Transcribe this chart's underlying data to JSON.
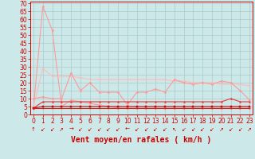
{
  "title": "",
  "xlabel": "Vent moyen/en rafales ( km/h )",
  "ylabel": "",
  "background_color": "#cce8e8",
  "grid_color": "#aacccc",
  "x_ticks": [
    0,
    1,
    2,
    3,
    4,
    5,
    6,
    7,
    8,
    9,
    10,
    11,
    12,
    13,
    14,
    15,
    16,
    17,
    18,
    19,
    20,
    21,
    22,
    23
  ],
  "y_ticks": [
    0,
    5,
    10,
    15,
    20,
    25,
    30,
    35,
    40,
    45,
    50,
    55,
    60,
    65,
    70
  ],
  "ylim": [
    0,
    71
  ],
  "xlim": [
    -0.3,
    23.3
  ],
  "series": [
    {
      "x": [
        0,
        1,
        2,
        3,
        4,
        5,
        6,
        7,
        8,
        9,
        10,
        11,
        12,
        13,
        14,
        15,
        16,
        17,
        18,
        19,
        20,
        21,
        22,
        23
      ],
      "y": [
        4,
        68,
        53,
        5,
        9,
        8,
        7,
        6,
        5,
        4,
        4,
        4,
        4,
        4,
        4,
        4,
        4,
        4,
        4,
        4,
        4,
        4,
        4,
        4
      ],
      "color": "#ff9999",
      "linewidth": 0.8,
      "marker": "o",
      "markersize": 1.5
    },
    {
      "x": [
        0,
        1,
        2,
        3,
        4,
        5,
        6,
        7,
        8,
        9,
        10,
        11,
        12,
        13,
        14,
        15,
        16,
        17,
        18,
        19,
        20,
        21,
        22,
        23
      ],
      "y": [
        5,
        29,
        24,
        24,
        24,
        23,
        22,
        22,
        22,
        22,
        22,
        22,
        22,
        22,
        22,
        21,
        21,
        20,
        20,
        20,
        19,
        19,
        19,
        18
      ],
      "color": "#ffbbbb",
      "linewidth": 0.8,
      "marker": "v",
      "markersize": 1.5
    },
    {
      "x": [
        0,
        1,
        2,
        3,
        4,
        5,
        6,
        7,
        8,
        9,
        10,
        11,
        12,
        13,
        14,
        15,
        16,
        17,
        18,
        19,
        20,
        21,
        22,
        23
      ],
      "y": [
        10,
        11,
        10,
        10,
        26,
        15,
        20,
        14,
        14,
        14,
        6,
        14,
        14,
        16,
        14,
        22,
        20,
        19,
        20,
        19,
        21,
        20,
        15,
        9
      ],
      "color": "#ff9999",
      "linewidth": 0.8,
      "marker": "D",
      "markersize": 1.5
    },
    {
      "x": [
        0,
        1,
        2,
        3,
        4,
        5,
        6,
        7,
        8,
        9,
        10,
        11,
        12,
        13,
        14,
        15,
        16,
        17,
        18,
        19,
        20,
        21,
        22,
        23
      ],
      "y": [
        4,
        8,
        8,
        8,
        8,
        8,
        8,
        8,
        8,
        8,
        8,
        8,
        8,
        8,
        8,
        8,
        8,
        8,
        8,
        8,
        8,
        10,
        8,
        8
      ],
      "color": "#ee3333",
      "linewidth": 0.8,
      "marker": "^",
      "markersize": 1.5
    },
    {
      "x": [
        0,
        1,
        2,
        3,
        4,
        5,
        6,
        7,
        8,
        9,
        10,
        11,
        12,
        13,
        14,
        15,
        16,
        17,
        18,
        19,
        20,
        21,
        22,
        23
      ],
      "y": [
        4,
        5,
        5,
        5,
        5,
        5,
        5,
        5,
        5,
        5,
        5,
        5,
        5,
        5,
        5,
        5,
        5,
        5,
        5,
        5,
        5,
        5,
        5,
        5
      ],
      "color": "#cc0000",
      "linewidth": 0.8,
      "marker": "s",
      "markersize": 1.5
    },
    {
      "x": [
        0,
        1,
        2,
        3,
        4,
        5,
        6,
        7,
        8,
        9,
        10,
        11,
        12,
        13,
        14,
        15,
        16,
        17,
        18,
        19,
        20,
        21,
        22,
        23
      ],
      "y": [
        4,
        4,
        4,
        4,
        4,
        4,
        4,
        4,
        4,
        4,
        4,
        4,
        4,
        4,
        4,
        4,
        4,
        4,
        4,
        4,
        4,
        4,
        4,
        4
      ],
      "color": "#cc2222",
      "linewidth": 0.8,
      "marker": "+",
      "markersize": 2.5
    }
  ],
  "arrow_chars": [
    "↑",
    "↙",
    "↙",
    "↗",
    "→",
    "↙",
    "↙",
    "↙",
    "↙",
    "↙",
    "←",
    "↙",
    "↙",
    "↙",
    "↙",
    "↖",
    "↙",
    "↙",
    "↙",
    "↙",
    "↗",
    "↙",
    "↙",
    "↗"
  ],
  "arrow_color": "#cc0000",
  "xlabel_color": "#cc0000",
  "xlabel_fontsize": 7,
  "tick_fontsize": 5.5,
  "tick_color": "#cc0000",
  "spine_color": "#cc0000"
}
